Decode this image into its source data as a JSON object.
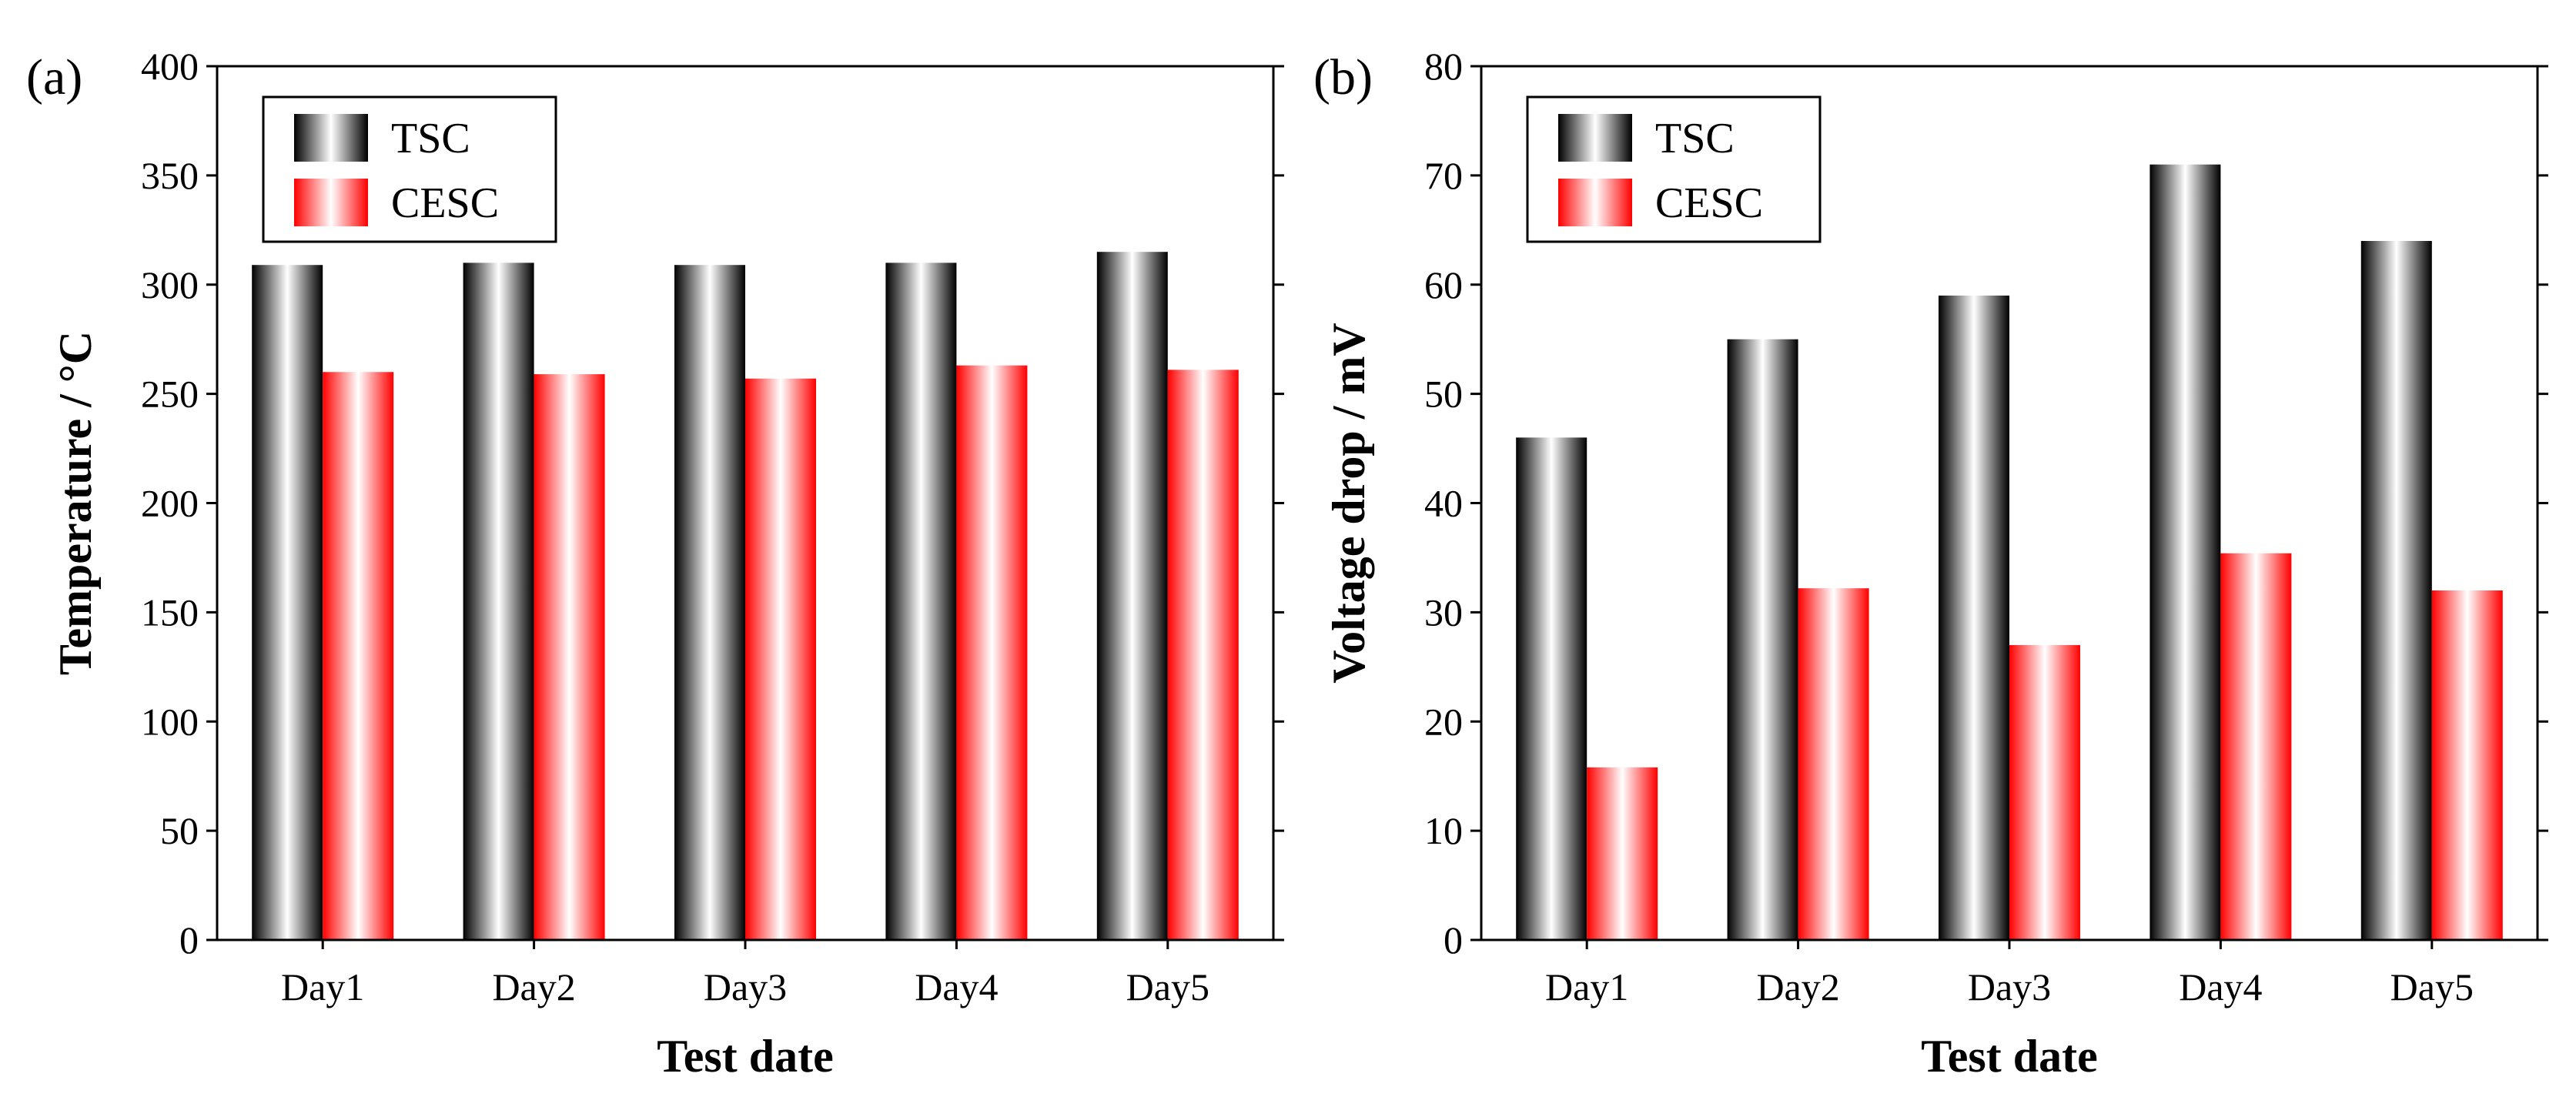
{
  "colors": {
    "tsc": "#000000",
    "cesc": "#ff0000",
    "highlight": "#ffffff"
  },
  "chart_data": [
    {
      "type": "bar",
      "panel_label": "(a)",
      "categories": [
        "Day1",
        "Day2",
        "Day3",
        "Day4",
        "Day5"
      ],
      "series": [
        {
          "name": "TSC",
          "values": [
            309,
            310,
            309,
            310,
            315
          ]
        },
        {
          "name": "CESC",
          "values": [
            260,
            259,
            257,
            263,
            261
          ]
        }
      ],
      "xlabel": "Test date",
      "ylabel": "Temperature / °C",
      "ylim": [
        0,
        400
      ],
      "yticks": [
        "0",
        "50",
        "100",
        "150",
        "200",
        "250",
        "300",
        "350",
        "400"
      ],
      "legend_position": "top-left"
    },
    {
      "type": "bar",
      "panel_label": "(b)",
      "categories": [
        "Day1",
        "Day2",
        "Day3",
        "Day4",
        "Day5"
      ],
      "series": [
        {
          "name": "TSC",
          "values": [
            46,
            55,
            59,
            71,
            64
          ]
        },
        {
          "name": "CESC",
          "values": [
            15.8,
            32.2,
            27,
            35.4,
            32
          ]
        }
      ],
      "xlabel": "Test date",
      "ylabel": "Voltage drop / mV",
      "ylim": [
        0,
        80
      ],
      "yticks": [
        "0",
        "10",
        "20",
        "30",
        "40",
        "50",
        "60",
        "70",
        "80"
      ],
      "legend_position": "top-left"
    }
  ]
}
